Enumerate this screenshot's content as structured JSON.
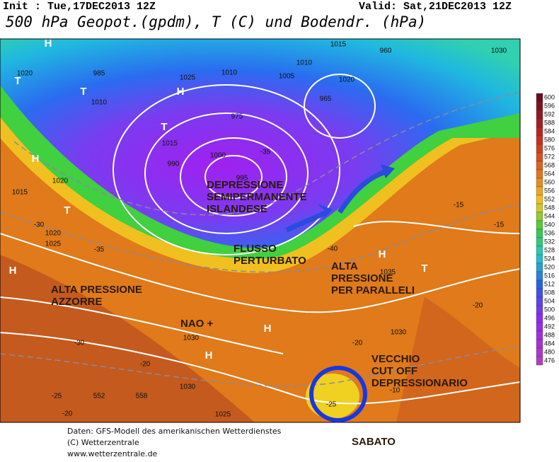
{
  "header": {
    "init": "Init : Tue,17DEC2013 12Z",
    "valid": "Valid: Sat,21DEC2013 12Z",
    "title": "500 hPa Geopot.(gpdm), T (C) und Bodendr. (hPa)"
  },
  "annotations": [
    {
      "lines": [
        "DEPRESSIONE",
        "SEMIPERMANENTE",
        "ISLANDESE"
      ]
    },
    {
      "lines": [
        "FLUSSO",
        "PERTURBATO"
      ]
    },
    {
      "lines": [
        "ALTA PRESSIONE",
        "AZZORRE"
      ]
    },
    {
      "lines": [
        "NAO +"
      ]
    },
    {
      "lines": [
        "ALTA",
        "PRESSIONE",
        "PER PARALLELI"
      ]
    },
    {
      "lines": [
        "VECCHIO",
        "CUT OFF",
        "DEPRESSIONARIO"
      ]
    },
    {
      "lines": [
        "SABATO"
      ]
    }
  ],
  "map_labels": [
    "H",
    "T",
    "H",
    "T",
    "T",
    "H",
    "T",
    "H",
    "H",
    "H",
    "H",
    "T",
    "1020",
    "1010",
    "1020",
    "1015",
    "1020",
    "1025",
    "1030",
    "1030",
    "1025",
    "1035",
    "1030",
    "1030",
    "1015",
    "1005",
    "1010",
    "1020",
    "1025",
    "1010",
    "1015",
    "1000",
    "990",
    "995",
    "985",
    "975",
    "965",
    "960",
    "-35",
    "-30",
    "-35",
    "-40",
    "-30",
    "-20",
    "-20",
    "-20",
    "-15",
    "-15",
    "-10",
    "-20",
    "-25",
    "-25",
    "552",
    "558"
  ],
  "legend": [
    "600",
    "596",
    "592",
    "588",
    "584",
    "580",
    "576",
    "572",
    "568",
    "564",
    "560",
    "556",
    "552",
    "548",
    "544",
    "540",
    "536",
    "532",
    "528",
    "524",
    "520",
    "516",
    "512",
    "508",
    "504",
    "500",
    "496",
    "492",
    "488",
    "484",
    "480",
    "476"
  ],
  "footer": [
    "Daten: GFS-Modell des amerikanischen Wetterdienstes",
    "(C) Wetterzentrale",
    "www.wetterzentrale.de"
  ]
}
